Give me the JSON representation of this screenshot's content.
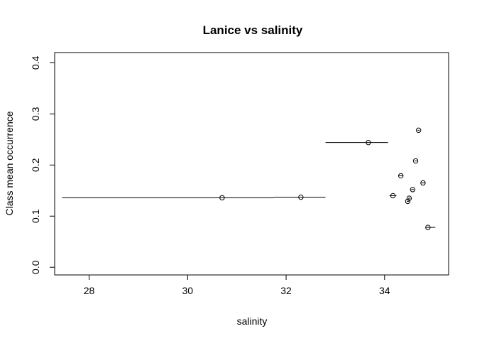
{
  "chart_data": {
    "type": "scatter",
    "title": "Lanice vs salinity",
    "xlabel": "salinity",
    "ylabel": "Class mean occurrence",
    "xlim": [
      27.3,
      35.3
    ],
    "ylim": [
      -0.015,
      0.42
    ],
    "x_ticks": [
      28,
      30,
      32,
      34
    ],
    "y_ticks": [
      0.0,
      0.1,
      0.2,
      0.3,
      0.4
    ],
    "x_tick_labels": [
      "28",
      "30",
      "32",
      "34"
    ],
    "y_tick_labels": [
      "0.0",
      "0.1",
      "0.2",
      "0.3",
      "0.4"
    ],
    "grid": false,
    "points": [
      {
        "x": 30.7,
        "y": 0.136,
        "x_range": [
          27.45,
          31.75
        ]
      },
      {
        "x": 32.3,
        "y": 0.137,
        "x_range": [
          31.75,
          32.8
        ]
      },
      {
        "x": 33.67,
        "y": 0.244,
        "x_range": [
          32.8,
          34.07
        ]
      },
      {
        "x": 34.17,
        "y": 0.14,
        "x_range": [
          34.1,
          34.24
        ]
      },
      {
        "x": 34.33,
        "y": 0.179,
        "x_range": [
          34.28,
          34.38
        ]
      },
      {
        "x": 34.47,
        "y": 0.129,
        "x_range": [
          34.45,
          34.5
        ]
      },
      {
        "x": 34.5,
        "y": 0.135,
        "x_range": [
          34.48,
          34.53
        ]
      },
      {
        "x": 34.57,
        "y": 0.152,
        "x_range": [
          34.54,
          34.6
        ]
      },
      {
        "x": 34.63,
        "y": 0.208,
        "x_range": [
          34.61,
          34.66
        ]
      },
      {
        "x": 34.69,
        "y": 0.268,
        "x_range": [
          34.67,
          34.71
        ]
      },
      {
        "x": 34.78,
        "y": 0.165,
        "x_range": [
          34.74,
          34.83
        ]
      },
      {
        "x": 34.88,
        "y": 0.078,
        "x_range": [
          34.84,
          35.03
        ]
      }
    ]
  }
}
